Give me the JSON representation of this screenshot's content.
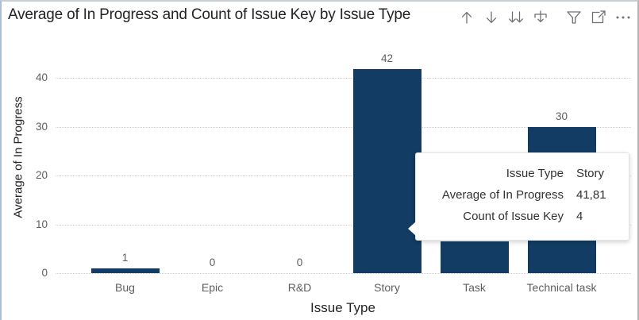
{
  "visual": {
    "title": "Average of In Progress and Count of Issue Key by Issue Type"
  },
  "header": {
    "icons": [
      "drill-up",
      "drill-down",
      "expand-all-levels",
      "go-to-next-level",
      "filter",
      "focus-mode",
      "more-options"
    ]
  },
  "chart_data": {
    "type": "bar",
    "title": "Average of In Progress and Count of Issue Key by Issue Type",
    "categories": [
      "Bug",
      "Epic",
      "R&D",
      "Story",
      "Task",
      "Technical task"
    ],
    "values": [
      1,
      0,
      0,
      41.81,
      6.5,
      30
    ],
    "data_labels": [
      "1",
      "0",
      "0",
      "42",
      "",
      "30"
    ],
    "xlabel": "Issue Type",
    "ylabel": "Average of In Progress",
    "ylim": [
      0,
      45
    ],
    "yticks": [
      0,
      10,
      20,
      30,
      40
    ],
    "grid": "horizontal-dotted",
    "legend": false,
    "bar_color": "#123C64"
  },
  "tooltip": {
    "rows": [
      {
        "label": "Issue Type",
        "value": "Story"
      },
      {
        "label": "Average of In Progress",
        "value": "41,81"
      },
      {
        "label": "Count of Issue Key",
        "value": "4"
      }
    ]
  },
  "colors": {
    "bar": "#123C64",
    "gridline": "#D2D0CE",
    "axis_text": "#605E5C",
    "title_text": "#252423",
    "icon": "#707070"
  }
}
